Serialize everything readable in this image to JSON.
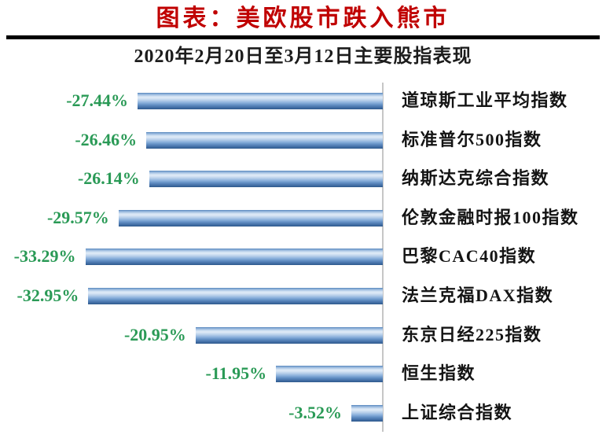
{
  "header": {
    "title": "图表：美欧股市跌入熊市",
    "title_color": "#c00000",
    "subtitle": "2020年2月20日至3月12日主要股指表现"
  },
  "chart_data": {
    "type": "bar",
    "orientation": "horizontal",
    "title": "图表：美欧股市跌入熊市",
    "subtitle": "2020年2月20日至3月12日主要股指表现",
    "categories": [
      "道琼斯工业平均指数",
      "标准普尔500指数",
      "纳斯达克综合指数",
      "伦敦金融时报100指数",
      "巴黎CAC40指数",
      "法兰克福DAX指数",
      "东京日经225指数",
      "恒生指数",
      "上证综合指数"
    ],
    "values": [
      -27.44,
      -26.46,
      -26.14,
      -29.57,
      -33.29,
      -32.95,
      -20.95,
      -11.95,
      -3.52
    ],
    "value_labels": [
      "-27.44%",
      "-26.46%",
      "-26.14%",
      "-29.57%",
      "-33.29%",
      "-32.95%",
      "-20.95%",
      "-11.95%",
      "-3.52%"
    ],
    "value_label_color": "#2a9a56",
    "bar_color_main": "#6f9bd1",
    "bar_gradient": [
      "#5584bb",
      "#dfeaf7",
      "#8ab0dc",
      "#2f5a8c"
    ],
    "baseline_color": "#c6c6c6",
    "xlim": [
      -35,
      0
    ],
    "grid": false,
    "legend": false
  }
}
